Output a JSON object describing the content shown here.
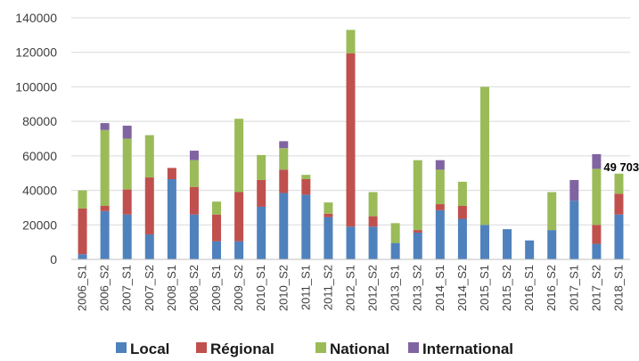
{
  "chart_data": {
    "type": "bar",
    "stacked": true,
    "title": "",
    "xlabel": "",
    "ylabel": "",
    "ylim": [
      0,
      140000
    ],
    "yticks": [
      0,
      20000,
      40000,
      60000,
      80000,
      100000,
      120000,
      140000
    ],
    "ytick_labels": [
      "0",
      "20000",
      "40000",
      "60000",
      "80000",
      "100000",
      "120000",
      "140000"
    ],
    "grid": true,
    "legend_position": "bottom",
    "categories": [
      "2006_S1",
      "2006_S2",
      "2007_S1",
      "2007_S2",
      "2008_S1",
      "2008_S2",
      "2009_S1",
      "2009_S2",
      "2010_S1",
      "2010_S2",
      "2011_S1",
      "2011_S2",
      "2012_S1",
      "2012_S2",
      "2013_S1",
      "2013_S2",
      "2014_S1",
      "2014_S2",
      "2015_S1",
      "2015_S2",
      "2016_S1",
      "2016_S2",
      "2017_S1",
      "2017_S2",
      "2018_S1"
    ],
    "series": [
      {
        "name": "Local",
        "color": "#4f81bd",
        "values": [
          3000,
          28000,
          26000,
          14500,
          46500,
          26000,
          10500,
          10500,
          30500,
          38500,
          37500,
          24500,
          19000,
          19000,
          9500,
          15500,
          28500,
          23500,
          20000,
          17500,
          11000,
          17000,
          34000,
          9000,
          26000
        ]
      },
      {
        "name": "Régional",
        "color": "#c0504d",
        "values": [
          26500,
          3000,
          14500,
          33000,
          6500,
          16000,
          15500,
          28500,
          15500,
          13500,
          9000,
          2000,
          100500,
          6000,
          0,
          1500,
          3500,
          7500,
          0,
          0,
          0,
          0,
          0,
          11000,
          12000
        ]
      },
      {
        "name": "National",
        "color": "#9bbb59",
        "values": [
          10500,
          44000,
          29500,
          24500,
          0,
          15500,
          7500,
          42500,
          14500,
          12500,
          2500,
          6500,
          13500,
          14000,
          11500,
          40500,
          20000,
          14000,
          80000,
          0,
          0,
          22000,
          0,
          32500,
          11700
        ]
      },
      {
        "name": "International",
        "color": "#8064a2",
        "values": [
          0,
          4000,
          7500,
          0,
          0,
          5500,
          0,
          0,
          0,
          4000,
          0,
          0,
          0,
          0,
          0,
          0,
          5500,
          0,
          0,
          0,
          0,
          0,
          12000,
          8500,
          0
        ]
      }
    ],
    "annotations": [
      {
        "category": "2017_S2",
        "text": "49 703"
      }
    ]
  }
}
